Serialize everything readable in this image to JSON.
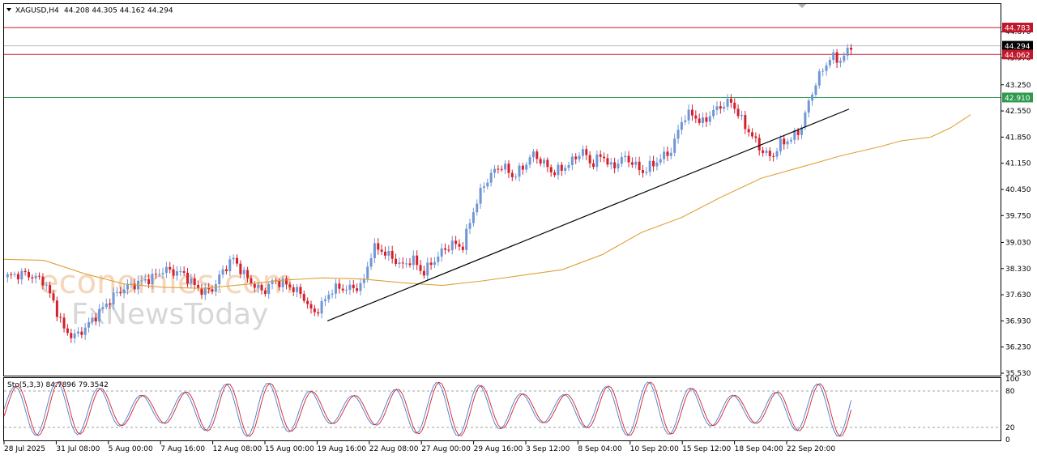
{
  "header": {
    "symbol": "XAGUSD,H4",
    "ohlc": "44.208 44.305 44.162 44.294"
  },
  "watermark": {
    "line1": "economies.com",
    "line2": "FxNewsToday"
  },
  "colors": {
    "bull": "#6f96d6",
    "bear": "#d4202c",
    "ma": "#e0a03a",
    "resistance": "#c0182a",
    "support": "#2e9a4e",
    "trendline": "#000000",
    "stoch_main": "#4a7cc8",
    "stoch_signal": "#d4202c"
  },
  "price_axis": {
    "ticks": [
      "44.670",
      "43.970",
      "43.250",
      "42.550",
      "41.850",
      "41.150",
      "40.450",
      "39.750",
      "39.030",
      "38.330",
      "37.630",
      "36.930",
      "36.230",
      "35.530"
    ],
    "range": [
      35.53,
      45.0
    ]
  },
  "price_labels": {
    "resistance_top": "44.783",
    "current": "44.294",
    "resistance_mid": "44.062",
    "support": "42.910"
  },
  "time_axis": [
    "28 Jul 2025",
    "31 Jul 08:00",
    "5 Aug 00:00",
    "7 Aug 16:00",
    "12 Aug 08:00",
    "15 Aug 00:00",
    "19 Aug 16:00",
    "22 Aug 08:00",
    "27 Aug 00:00",
    "29 Aug 16:00",
    "3 Sep 12:00",
    "8 Sep 04:00",
    "10 Sep 20:00",
    "15 Sep 12:00",
    "18 Sep 04:00",
    "22 Sep 20:00"
  ],
  "stochastic": {
    "label": "Sto(5,3,3) 84.7896 79.3542",
    "levels": [
      "100",
      "80",
      "20",
      "0"
    ],
    "current_main": 84.7896,
    "current_signal": 79.3542,
    "levels_values": [
      20,
      80
    ]
  },
  "chart_data": {
    "type": "candlestick",
    "symbol": "XAGUSD",
    "timeframe": "H4",
    "ylim": [
      35.53,
      45.0
    ],
    "horizontal_lines": [
      {
        "label": "resistance",
        "value": 44.783
      },
      {
        "label": "resistance",
        "value": 44.062
      },
      {
        "label": "support",
        "value": 42.91
      },
      {
        "label": "current price",
        "value": 44.294
      }
    ],
    "trendline": {
      "from": [
        "19 Aug 16:00",
        36.93
      ],
      "to": [
        "22 Sep 20:00",
        42.6
      ]
    },
    "ma_path": [
      [
        0,
        38.58
      ],
      [
        0.04,
        38.55
      ],
      [
        0.08,
        38.2
      ],
      [
        0.12,
        37.92
      ],
      [
        0.16,
        37.83
      ],
      [
        0.2,
        37.8
      ],
      [
        0.24,
        37.9
      ],
      [
        0.28,
        38.02
      ],
      [
        0.32,
        38.08
      ],
      [
        0.36,
        38.05
      ],
      [
        0.4,
        37.95
      ],
      [
        0.44,
        37.88
      ],
      [
        0.48,
        38.0
      ],
      [
        0.52,
        38.15
      ],
      [
        0.56,
        38.3
      ],
      [
        0.6,
        38.7
      ],
      [
        0.64,
        39.3
      ],
      [
        0.68,
        39.7
      ],
      [
        0.72,
        40.25
      ],
      [
        0.76,
        40.75
      ],
      [
        0.8,
        41.05
      ],
      [
        0.84,
        41.35
      ],
      [
        0.88,
        41.6
      ],
      [
        0.9,
        41.75
      ],
      [
        0.93,
        41.85
      ],
      [
        0.95,
        42.1
      ],
      [
        0.97,
        42.45
      ]
    ],
    "price_path": [
      [
        0,
        38.1
      ],
      [
        0.02,
        38.2
      ],
      [
        0.04,
        38.0
      ],
      [
        0.05,
        37.4
      ],
      [
        0.06,
        36.7
      ],
      [
        0.07,
        36.5
      ],
      [
        0.08,
        36.7
      ],
      [
        0.09,
        37.0
      ],
      [
        0.1,
        37.3
      ],
      [
        0.11,
        37.6
      ],
      [
        0.12,
        37.8
      ],
      [
        0.13,
        37.9
      ],
      [
        0.15,
        38.1
      ],
      [
        0.16,
        38.3
      ],
      [
        0.18,
        38.2
      ],
      [
        0.19,
        37.9
      ],
      [
        0.2,
        37.7
      ],
      [
        0.21,
        37.8
      ],
      [
        0.22,
        38.3
      ],
      [
        0.23,
        38.6
      ],
      [
        0.24,
        38.2
      ],
      [
        0.25,
        37.9
      ],
      [
        0.26,
        37.7
      ],
      [
        0.27,
        38.0
      ],
      [
        0.28,
        37.95
      ],
      [
        0.29,
        37.8
      ],
      [
        0.3,
        37.6
      ],
      [
        0.31,
        37.1
      ],
      [
        0.32,
        37.4
      ],
      [
        0.33,
        37.8
      ],
      [
        0.35,
        37.8
      ],
      [
        0.36,
        37.9
      ],
      [
        0.37,
        38.9
      ],
      [
        0.38,
        38.8
      ],
      [
        0.39,
        38.6
      ],
      [
        0.4,
        38.4
      ],
      [
        0.41,
        38.6
      ],
      [
        0.42,
        38.2
      ],
      [
        0.43,
        38.5
      ],
      [
        0.44,
        38.8
      ],
      [
        0.45,
        39.0
      ],
      [
        0.46,
        38.9
      ],
      [
        0.47,
        39.8
      ],
      [
        0.48,
        40.5
      ],
      [
        0.49,
        40.9
      ],
      [
        0.5,
        41.1
      ],
      [
        0.51,
        40.8
      ],
      [
        0.52,
        41.0
      ],
      [
        0.53,
        41.4
      ],
      [
        0.54,
        41.2
      ],
      [
        0.55,
        40.9
      ],
      [
        0.56,
        41.0
      ],
      [
        0.57,
        41.2
      ],
      [
        0.58,
        41.5
      ],
      [
        0.59,
        41.1
      ],
      [
        0.6,
        41.4
      ],
      [
        0.61,
        41.0
      ],
      [
        0.62,
        41.3
      ],
      [
        0.63,
        41.2
      ],
      [
        0.64,
        40.9
      ],
      [
        0.65,
        41.1
      ],
      [
        0.66,
        41.3
      ],
      [
        0.67,
        41.5
      ],
      [
        0.68,
        42.3
      ],
      [
        0.69,
        42.5
      ],
      [
        0.7,
        42.2
      ],
      [
        0.71,
        42.5
      ],
      [
        0.72,
        42.7
      ],
      [
        0.73,
        42.8
      ],
      [
        0.74,
        42.3
      ],
      [
        0.75,
        41.9
      ],
      [
        0.76,
        41.5
      ],
      [
        0.77,
        41.3
      ],
      [
        0.78,
        41.7
      ],
      [
        0.79,
        41.8
      ],
      [
        0.8,
        42.1
      ],
      [
        0.81,
        43.0
      ],
      [
        0.82,
        43.6
      ],
      [
        0.83,
        44.0
      ],
      [
        0.84,
        43.9
      ],
      [
        0.85,
        44.29
      ]
    ]
  }
}
